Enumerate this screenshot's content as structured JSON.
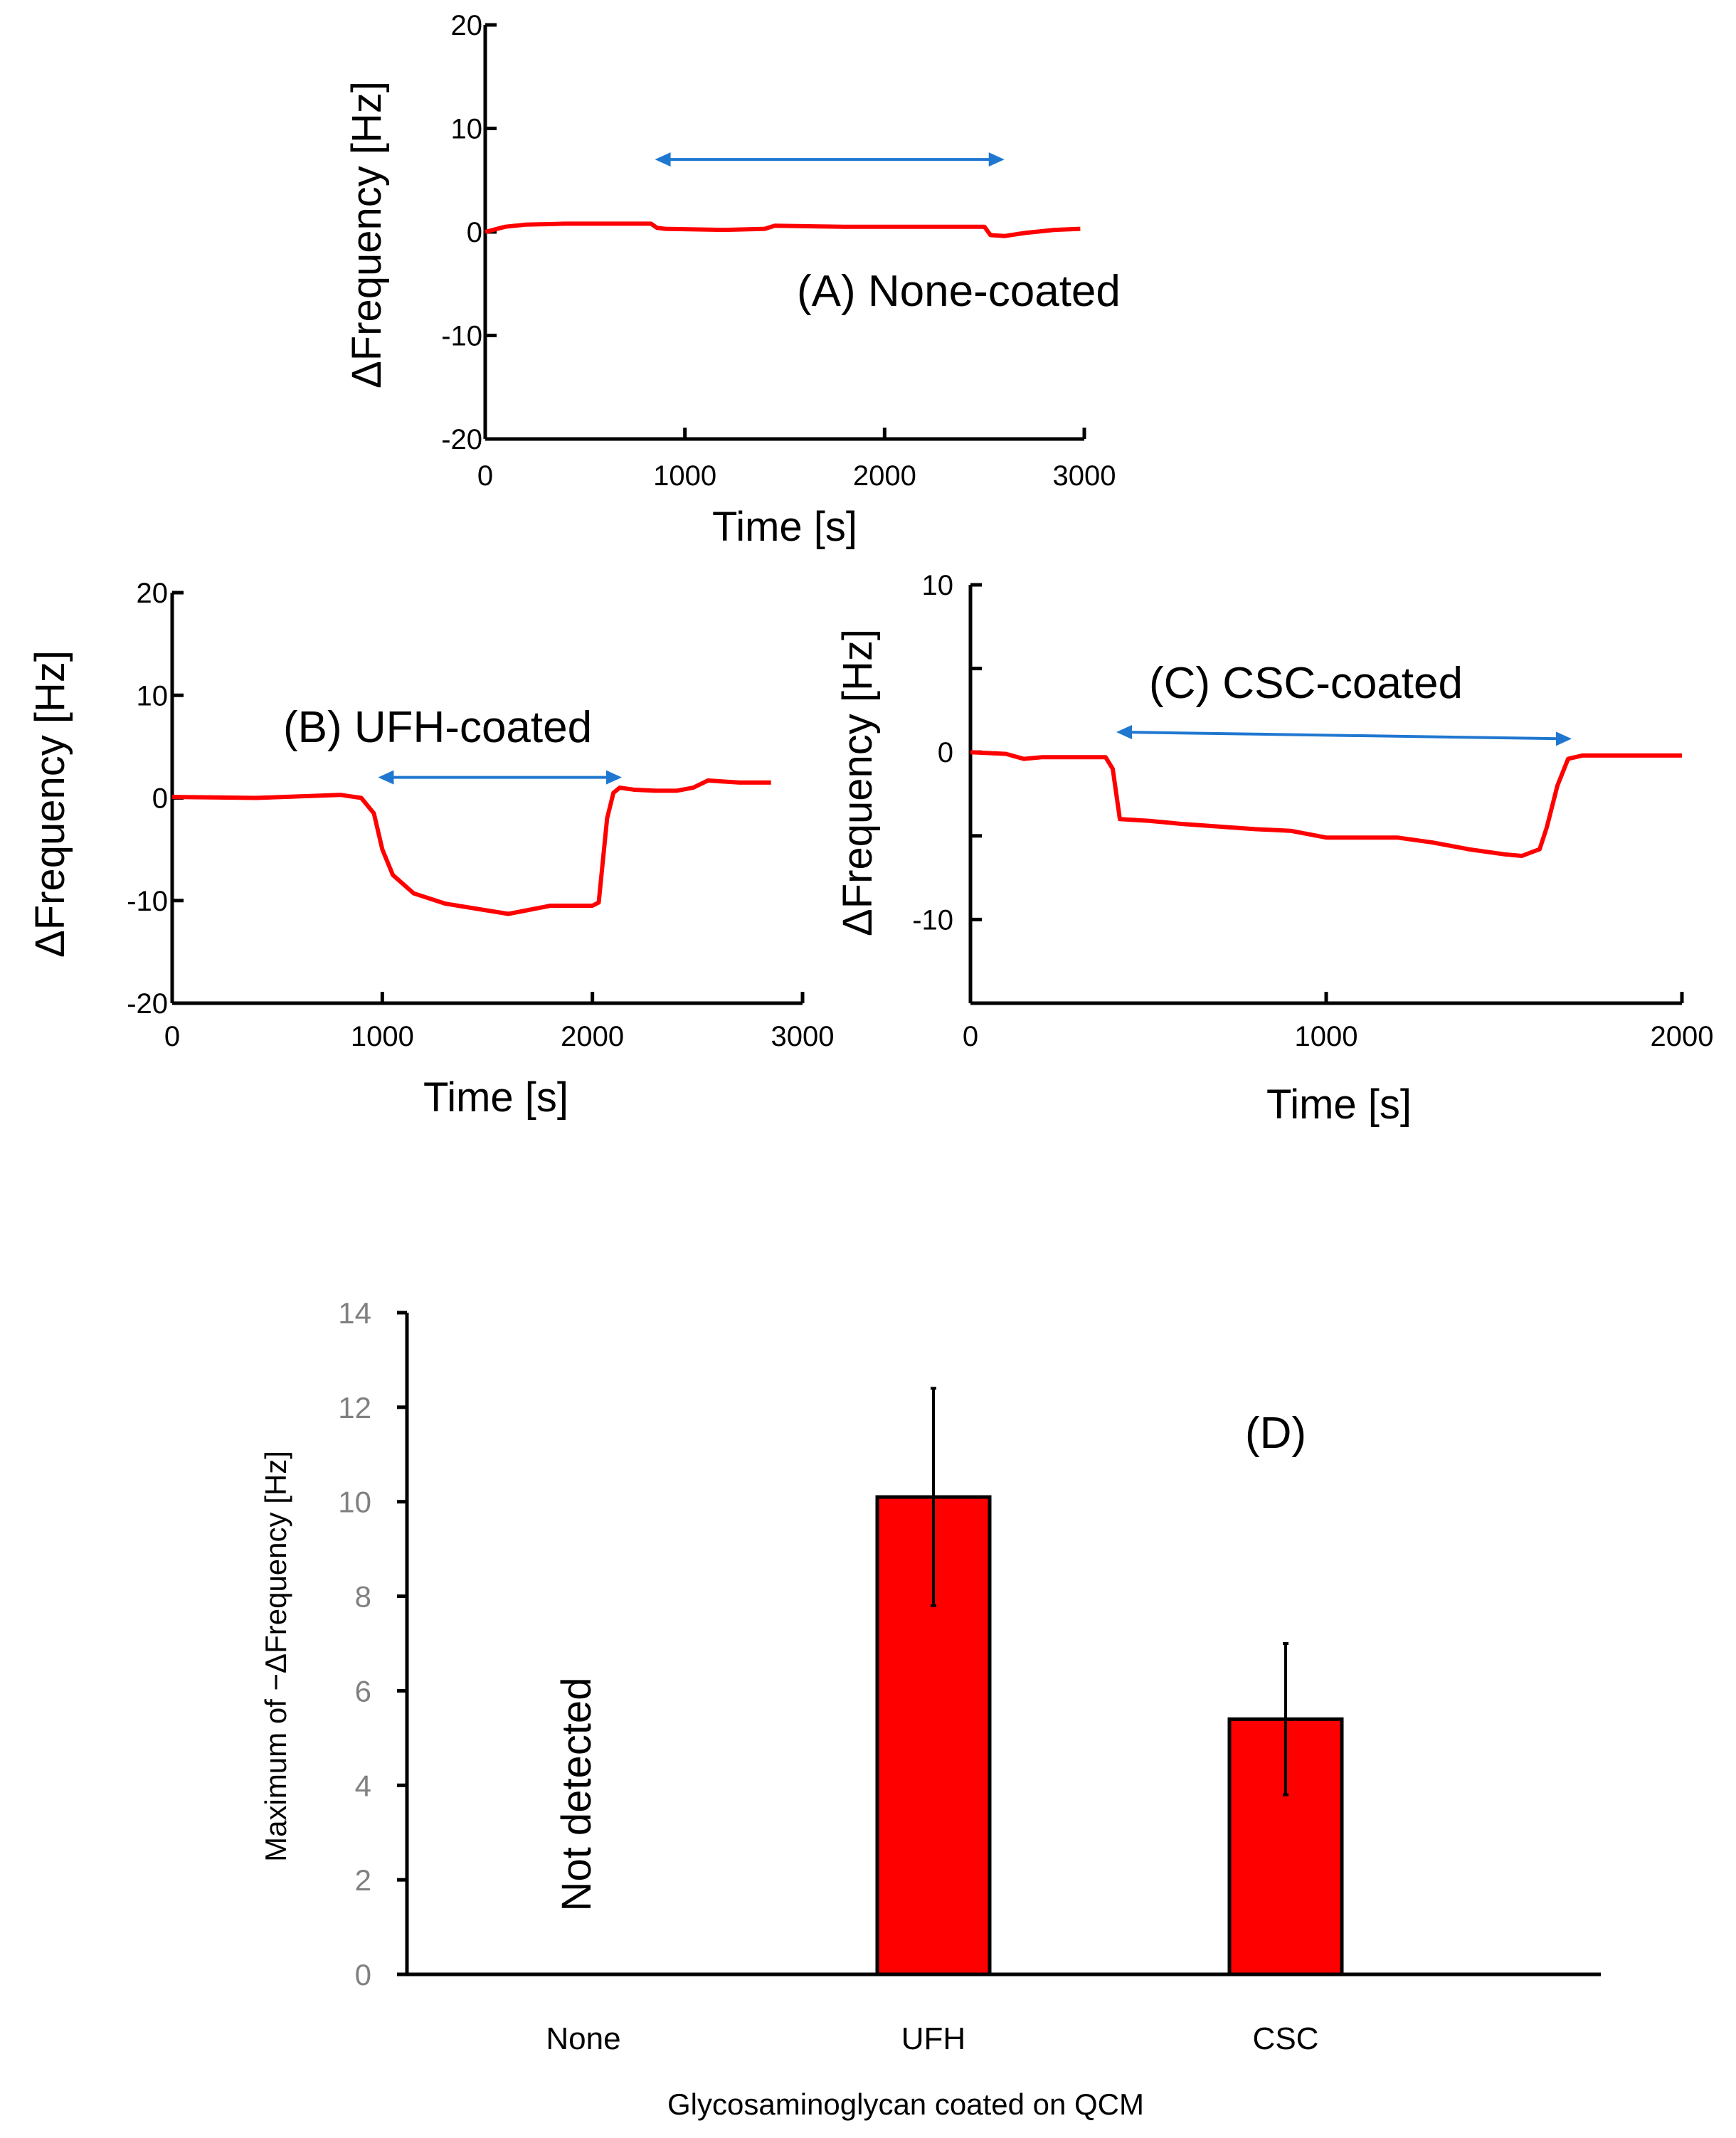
{
  "chart_data": [
    {
      "id": "A",
      "type": "line",
      "label": "(A) None-coated",
      "xlabel": "Time [s]",
      "ylabel": "ΔFrequency [Hz]",
      "xlim": [
        0,
        3000
      ],
      "ylim": [
        -20,
        20
      ],
      "xticks": [
        "0",
        "1000",
        "2000",
        "3000"
      ],
      "yticks": [
        "20",
        "10",
        "0",
        "-10",
        "-20"
      ],
      "series": [
        {
          "name": "ΔFrequency",
          "color": "#ff0000",
          "points": [
            [
              0,
              0
            ],
            [
              100,
              0.5
            ],
            [
              200,
              0.7
            ],
            [
              400,
              0.8
            ],
            [
              600,
              0.8
            ],
            [
              830,
              0.8
            ],
            [
              860,
              0.4
            ],
            [
              900,
              0.3
            ],
            [
              1200,
              0.2
            ],
            [
              1400,
              0.3
            ],
            [
              1450,
              0.6
            ],
            [
              1800,
              0.5
            ],
            [
              2200,
              0.5
            ],
            [
              2500,
              0.5
            ],
            [
              2530,
              -0.3
            ],
            [
              2600,
              -0.4
            ],
            [
              2700,
              -0.1
            ],
            [
              2850,
              0.2
            ],
            [
              2980,
              0.3
            ]
          ]
        }
      ],
      "arrow": {
        "from": 850,
        "to": 2600,
        "y": 7
      }
    },
    {
      "id": "B",
      "type": "line",
      "label": "(B) UFH-coated",
      "xlabel": "Time [s]",
      "ylabel": "ΔFrequency [Hz]",
      "xlim": [
        0,
        3000
      ],
      "ylim": [
        -20,
        20
      ],
      "xticks": [
        "0",
        "1000",
        "2000",
        "3000"
      ],
      "yticks": [
        "20",
        "10",
        "0",
        "-10",
        "-20"
      ],
      "series": [
        {
          "name": "ΔFrequency",
          "color": "#ff0000",
          "points": [
            [
              0,
              0.1
            ],
            [
              400,
              0
            ],
            [
              800,
              0.3
            ],
            [
              900,
              0
            ],
            [
              960,
              -1.5
            ],
            [
              1000,
              -5
            ],
            [
              1050,
              -7.5
            ],
            [
              1150,
              -9.3
            ],
            [
              1300,
              -10.3
            ],
            [
              1600,
              -11.3
            ],
            [
              1800,
              -10.5
            ],
            [
              2000,
              -10.5
            ],
            [
              2030,
              -10.2
            ],
            [
              2070,
              -2
            ],
            [
              2100,
              0.5
            ],
            [
              2130,
              1
            ],
            [
              2200,
              0.8
            ],
            [
              2300,
              0.7
            ],
            [
              2400,
              0.7
            ],
            [
              2480,
              1
            ],
            [
              2550,
              1.7
            ],
            [
              2700,
              1.5
            ],
            [
              2850,
              1.5
            ]
          ]
        }
      ],
      "arrow": {
        "from": 980,
        "to": 2140,
        "y": 2
      }
    },
    {
      "id": "C",
      "type": "line",
      "label": "(C) CSC-coated",
      "xlabel": "Time [s]",
      "ylabel": "ΔFrequency [Hz]",
      "xlim": [
        0,
        2000
      ],
      "ylim": [
        -15,
        10
      ],
      "xticks": [
        "0",
        "1000",
        "2000"
      ],
      "yticks": [
        "10",
        "0",
        "-10"
      ],
      "series": [
        {
          "name": "ΔFrequency",
          "color": "#ff0000",
          "points": [
            [
              0,
              0
            ],
            [
              100,
              -0.1
            ],
            [
              150,
              -0.4
            ],
            [
              200,
              -0.3
            ],
            [
              380,
              -0.3
            ],
            [
              400,
              -1
            ],
            [
              420,
              -4
            ],
            [
              500,
              -4.1
            ],
            [
              600,
              -4.3
            ],
            [
              800,
              -4.6
            ],
            [
              900,
              -4.7
            ],
            [
              1000,
              -5.1
            ],
            [
              1200,
              -5.1
            ],
            [
              1300,
              -5.4
            ],
            [
              1400,
              -5.8
            ],
            [
              1500,
              -6.1
            ],
            [
              1550,
              -6.2
            ],
            [
              1600,
              -5.8
            ],
            [
              1620,
              -4.5
            ],
            [
              1650,
              -2
            ],
            [
              1680,
              -0.4
            ],
            [
              1720,
              -0.2
            ],
            [
              2000,
              -0.2
            ]
          ]
        }
      ],
      "arrow": {
        "from": 410,
        "to": 1690,
        "y": 1.2,
        "y_end": 0.8
      }
    },
    {
      "id": "D",
      "type": "bar",
      "label": "(D)",
      "xlabel": "Glycosaminoglycan coated on QCM",
      "ylabel": "Maximum of −ΔFrequency [Hz]",
      "ylim": [
        0,
        14
      ],
      "yticks": [
        "0",
        "2",
        "4",
        "6",
        "8",
        "10",
        "12",
        "14"
      ],
      "categories": [
        "None",
        "UFH",
        "CSC"
      ],
      "values": [
        null,
        10.1,
        5.4
      ],
      "errors": [
        null,
        2.3,
        1.6
      ],
      "color": "#ff0000",
      "annotation": "Not detected"
    }
  ]
}
